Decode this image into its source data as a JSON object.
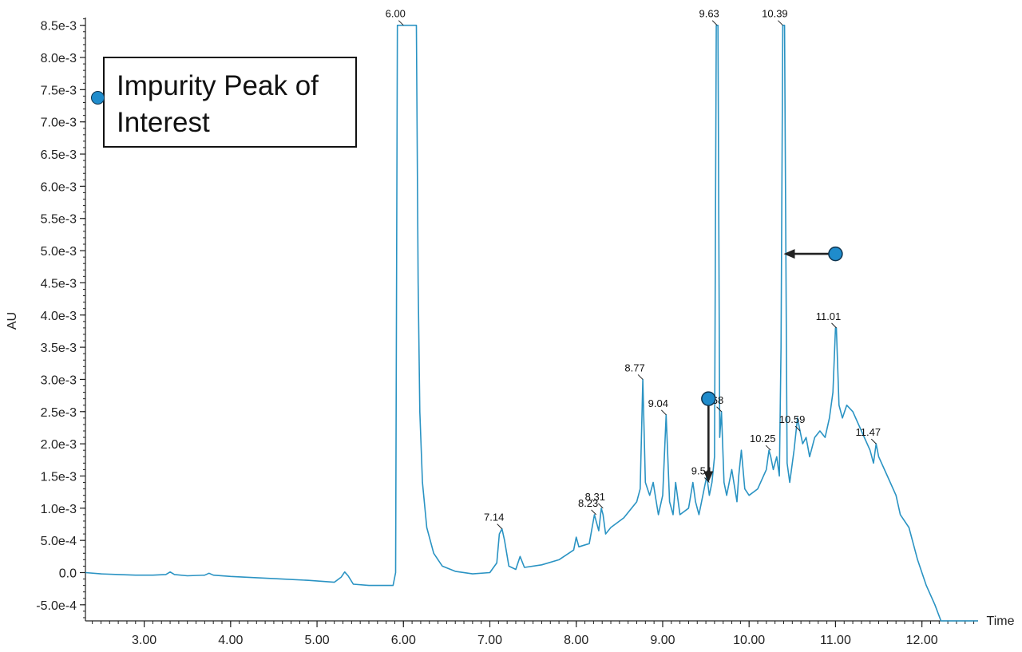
{
  "chart_data": {
    "type": "line",
    "title": "",
    "xlabel": "Time",
    "ylabel": "AU",
    "xlim": [
      2.32,
      12.65
    ],
    "ylim": [
      -0.00075,
      0.00862
    ],
    "xticks": [
      3,
      4,
      5,
      6,
      7,
      8,
      9,
      10,
      11,
      12
    ],
    "xtick_labels": [
      "3.00",
      "4.00",
      "5.00",
      "6.00",
      "7.00",
      "8.00",
      "9.00",
      "10.00",
      "11.00",
      "12.00"
    ],
    "yticks": [
      -0.0005,
      0,
      0.0005,
      0.001,
      0.0015,
      0.002,
      0.0025,
      0.003,
      0.0035,
      0.004,
      0.0045,
      0.005,
      0.0055,
      0.006,
      0.0065,
      0.007,
      0.0075,
      0.008,
      0.0085
    ],
    "ytick_labels": [
      "-5.0e-4",
      "0.0",
      "5.0e-4",
      "1.0e-3",
      "1.5e-3",
      "2.0e-3",
      "2.5e-3",
      "3.0e-3",
      "3.5e-3",
      "4.0e-3",
      "4.5e-3",
      "5.0e-3",
      "5.5e-3",
      "6.0e-3",
      "6.5e-3",
      "7.0e-3",
      "7.5e-3",
      "8.0e-3",
      "8.5e-3"
    ],
    "line_color": "#2a93c3",
    "series": [
      {
        "x": [
          2.32,
          2.5,
          2.7,
          2.9,
          3.1,
          3.25,
          3.3,
          3.35,
          3.5,
          3.7,
          3.75,
          3.8,
          4.0,
          4.3,
          4.6,
          4.9,
          5.2,
          5.28,
          5.32,
          5.36,
          5.42,
          5.6,
          5.8,
          5.88,
          5.91,
          5.93,
          6.0,
          6.15,
          6.17,
          6.19,
          6.22,
          6.27,
          6.35,
          6.45,
          6.6,
          6.8,
          7.0,
          7.08,
          7.11,
          7.14,
          7.17,
          7.22,
          7.3,
          7.35,
          7.4,
          7.6,
          7.8,
          7.97,
          8.0,
          8.03,
          8.15,
          8.21,
          8.23,
          8.26,
          8.29,
          8.31,
          8.34,
          8.4,
          8.55,
          8.7,
          8.74,
          8.77,
          8.8,
          8.85,
          8.89,
          8.92,
          8.95,
          9.0,
          9.04,
          9.08,
          9.12,
          9.15,
          9.2,
          9.3,
          9.35,
          9.38,
          9.42,
          9.48,
          9.51,
          9.54,
          9.57,
          9.6,
          9.62,
          9.63,
          9.64,
          9.66,
          9.68,
          9.71,
          9.74,
          9.8,
          9.86,
          9.88,
          9.91,
          9.95,
          10.0,
          10.1,
          10.2,
          10.23,
          10.25,
          10.28,
          10.32,
          10.35,
          10.37,
          10.39,
          10.41,
          10.44,
          10.47,
          10.52,
          10.56,
          10.59,
          10.62,
          10.66,
          10.7,
          10.76,
          10.82,
          10.88,
          10.93,
          10.97,
          11.0,
          11.01,
          11.04,
          11.08,
          11.13,
          11.2,
          11.3,
          11.4,
          11.44,
          11.47,
          11.5,
          11.6,
          11.7,
          11.75,
          11.85,
          11.95,
          12.05,
          12.15,
          12.22,
          12.4,
          12.65
        ],
        "y": [
          0.0,
          -2e-05,
          -3e-05,
          -4e-05,
          -4e-05,
          -3e-05,
          1e-05,
          -3e-05,
          -5e-05,
          -4e-05,
          -1e-05,
          -4e-05,
          -6e-05,
          -8e-05,
          -0.0001,
          -0.00012,
          -0.00015,
          -7e-05,
          1e-05,
          -5e-05,
          -0.00018,
          -0.0002,
          -0.0002,
          -0.0002,
          0.0,
          0.0085,
          0.0085,
          0.0085,
          0.0045,
          0.0025,
          0.0014,
          0.0007,
          0.0003,
          0.0001,
          2e-05,
          -2e-05,
          0.0,
          0.00015,
          0.0006,
          0.00068,
          0.0005,
          0.0001,
          5e-05,
          0.00025,
          8e-05,
          0.00012,
          0.0002,
          0.00035,
          0.00055,
          0.0004,
          0.00045,
          0.0009,
          0.0008,
          0.00065,
          0.001,
          0.0009,
          0.0006,
          0.0007,
          0.00085,
          0.0011,
          0.0013,
          0.003,
          0.0014,
          0.0012,
          0.0014,
          0.00115,
          0.0009,
          0.0012,
          0.00245,
          0.0011,
          0.0009,
          0.0014,
          0.0009,
          0.001,
          0.0014,
          0.0011,
          0.0009,
          0.0013,
          0.0015,
          0.0012,
          0.0014,
          0.0018,
          0.0085,
          0.0085,
          0.0085,
          0.0021,
          0.0025,
          0.0014,
          0.0012,
          0.0016,
          0.0011,
          0.0015,
          0.0019,
          0.0013,
          0.0012,
          0.0013,
          0.0016,
          0.0019,
          0.0018,
          0.0016,
          0.0018,
          0.0015,
          0.0035,
          0.0085,
          0.0085,
          0.0017,
          0.0014,
          0.0019,
          0.0024,
          0.0022,
          0.002,
          0.0021,
          0.0018,
          0.0021,
          0.0022,
          0.0021,
          0.0024,
          0.0028,
          0.0038,
          0.0038,
          0.0026,
          0.0024,
          0.0026,
          0.0025,
          0.0022,
          0.0019,
          0.0017,
          0.002,
          0.0018,
          0.0015,
          0.0012,
          0.0009,
          0.0007,
          0.0002,
          -0.0002,
          -0.0005,
          -0.00075,
          -0.00075,
          -0.00075
        ]
      }
    ],
    "peak_labels": [
      {
        "x": 6.0,
        "y": 0.0085,
        "label": "6.00"
      },
      {
        "x": 7.14,
        "y": 0.00068,
        "label": "7.14"
      },
      {
        "x": 8.23,
        "y": 0.0009,
        "label": "8.23"
      },
      {
        "x": 8.31,
        "y": 0.001,
        "label": "8.31"
      },
      {
        "x": 8.77,
        "y": 0.003,
        "label": "8.77"
      },
      {
        "x": 9.04,
        "y": 0.00245,
        "label": "9.04"
      },
      {
        "x": 9.54,
        "y": 0.0014,
        "label": "9.54"
      },
      {
        "x": 9.63,
        "y": 0.0085,
        "label": "9.63"
      },
      {
        "x": 9.68,
        "y": 0.0025,
        "label": "9.68"
      },
      {
        "x": 10.25,
        "y": 0.0019,
        "label": "10.25"
      },
      {
        "x": 10.39,
        "y": 0.0085,
        "label": "10.39"
      },
      {
        "x": 10.59,
        "y": 0.0022,
        "label": "10.59"
      },
      {
        "x": 11.01,
        "y": 0.0038,
        "label": "11.01"
      },
      {
        "x": 11.47,
        "y": 0.002,
        "label": "11.47"
      }
    ],
    "annotations": {
      "legend_text": "Impurity Peak of Interest",
      "marker_color": "#1f8ccc",
      "markers": [
        {
          "x": 9.53,
          "y": 0.0027,
          "arrow_to_x": 9.53,
          "arrow_to_y": 0.0014
        },
        {
          "x": 11.0,
          "y": 0.00495,
          "arrow_to_x": 10.4,
          "arrow_to_y": 0.00495
        }
      ]
    }
  }
}
